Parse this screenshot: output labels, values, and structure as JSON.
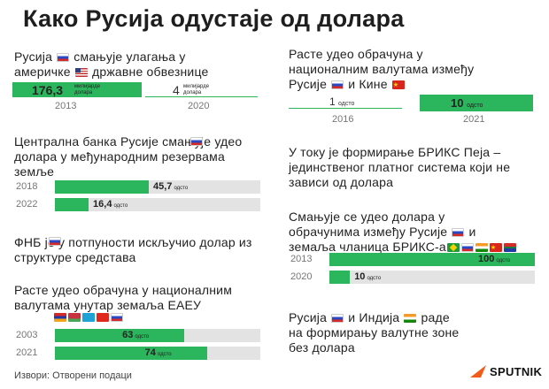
{
  "title": "Како Русија одустаје од долара",
  "source": "Извори: Отворени подаци",
  "brand": "SPUTNIK",
  "accent_color": "#2bb55c",
  "sections": {
    "treasuries": {
      "text_a": "Русија",
      "text_b": "смањује улагања у",
      "text_c": "америчке",
      "text_d": "државне обвезнице",
      "unit": "милијарде долара"
    },
    "central_bank": {
      "text": "Централна банка Русије  смањује удео долара у међународним резервама земље"
    },
    "nwf": {
      "text": "ФНБ  је у потпуности искључио долар из структуре средстава"
    },
    "eaeu": {
      "text": "Расте удео обрачуна у националним валутама унутар земаља ЕАЕУ"
    },
    "ru_cn": {
      "text_a": "Расте удео обрачуна у",
      "text_b": "националним валутама између",
      "text_c": "Русије",
      "text_d": "и Кине"
    },
    "brics_pay": {
      "text": "У току је формирање БРИКС Пеја – јединственог платног система који не зависи од долара"
    },
    "brics": {
      "text_a": "Смањује се удео долара у",
      "text_b": "обрачунима између Русије",
      "text_c": "и",
      "text_d": "земаља чланица БРИКС-а"
    },
    "ru_in": {
      "text_a": "Русија",
      "text_b": "и Индија",
      "text_c": "раде",
      "text_d": "на формирању валутне зоне",
      "text_e": "без долара"
    }
  },
  "chart_data": [
    {
      "type": "bar",
      "title": "Русија смањује улагања у америчке државне обвезнице",
      "unit": "милијарде долара",
      "categories": [
        "2013",
        "2020"
      ],
      "values": [
        176.3,
        4
      ],
      "labels": [
        "176,3",
        "4"
      ]
    },
    {
      "type": "bar",
      "title": "Централна банка Русије смањује удео долара у међународним резервама земље",
      "unit": "одсто",
      "categories": [
        "2018",
        "2022"
      ],
      "values": [
        45.7,
        16.4
      ],
      "labels": [
        "45,7",
        "16,4"
      ],
      "xlim": [
        0,
        100
      ]
    },
    {
      "type": "bar",
      "title": "Расте удео обрачуна у националним валутама унутар земаља ЕАЕУ",
      "unit": "одсто",
      "categories": [
        "2003",
        "2021"
      ],
      "values": [
        63,
        74
      ],
      "labels": [
        "63",
        "74"
      ],
      "xlim": [
        0,
        100
      ]
    },
    {
      "type": "bar",
      "title": "Расте удео обрачуна у националним валутама између Русије и Кине",
      "unit": "одсто",
      "categories": [
        "2016",
        "2021"
      ],
      "values": [
        1,
        10
      ],
      "labels": [
        "1",
        "10"
      ]
    },
    {
      "type": "bar",
      "title": "Смањује се удео долара у обрачунима између Русије и земаља чланица БРИКС-а",
      "unit": "одсто",
      "categories": [
        "2013",
        "2020"
      ],
      "values": [
        100,
        10
      ],
      "labels": [
        "100",
        "10"
      ],
      "xlim": [
        0,
        100
      ]
    }
  ]
}
